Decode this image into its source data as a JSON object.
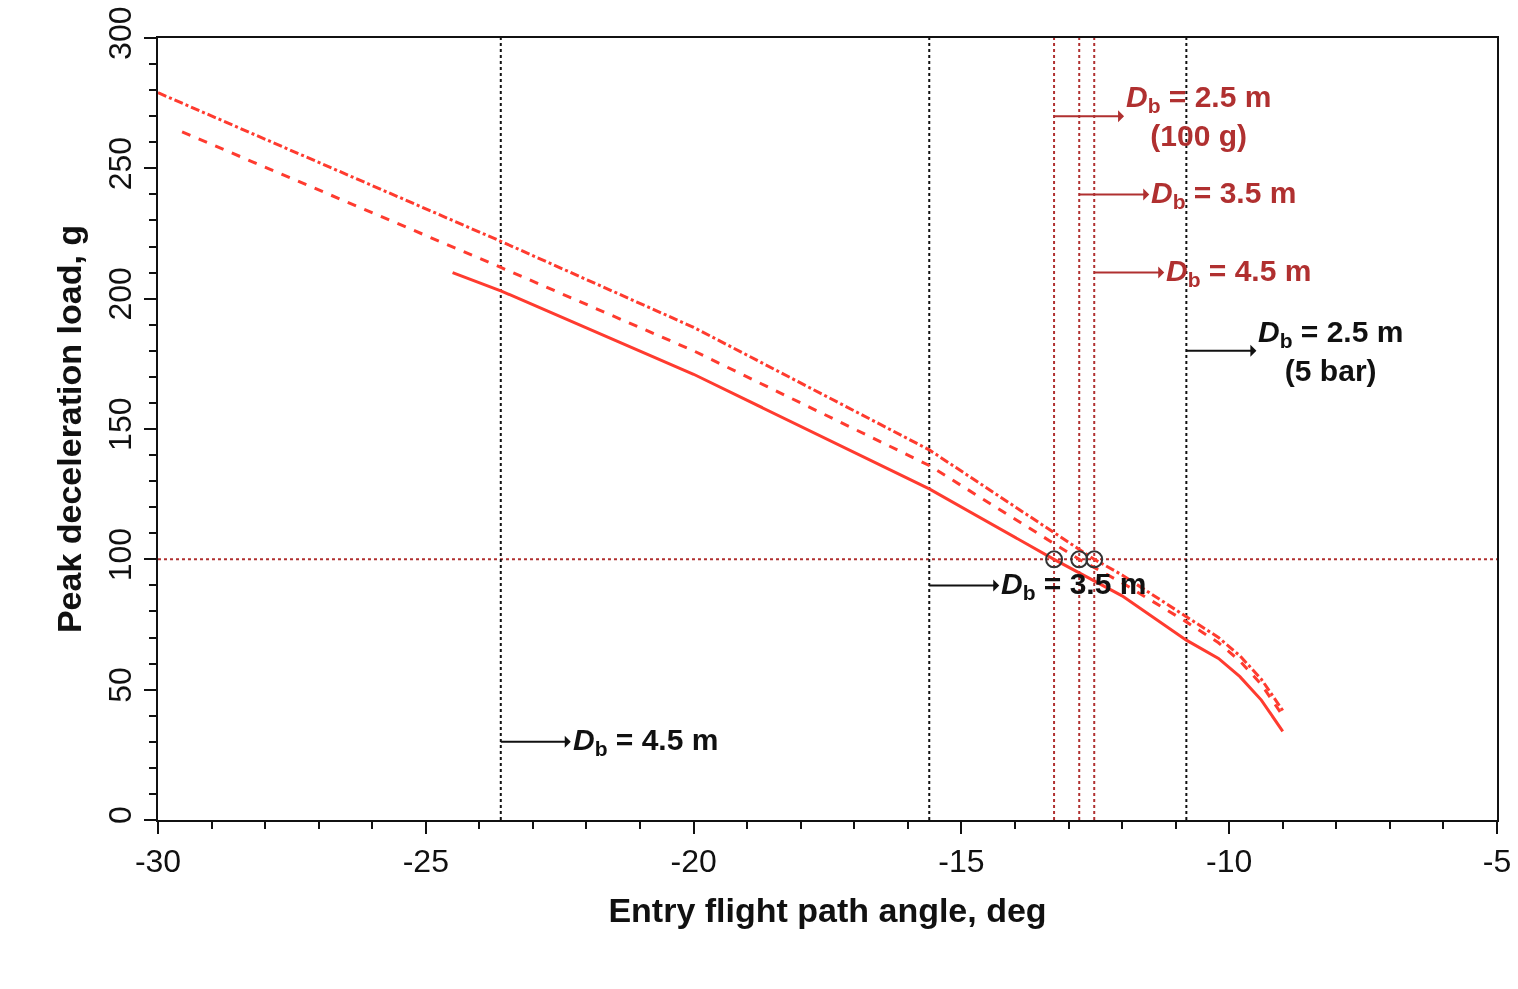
{
  "chart_data": {
    "type": "line",
    "xlabel": "Entry flight path angle, deg",
    "ylabel": "Peak deceleration load, g",
    "xlim": [
      -30,
      -5
    ],
    "xticks": [
      -30,
      -25,
      -20,
      -15,
      -10,
      -5
    ],
    "ylim": [
      0,
      300
    ],
    "yticks": [
      0,
      50,
      100,
      150,
      200,
      250,
      300
    ],
    "grid": false,
    "series": [
      {
        "color": "#ff3b2f",
        "line_style": "solid",
        "x": [
          -24.5,
          -23.6,
          -20,
          -15.6,
          -13.27,
          -12,
          -10.8,
          -10.2,
          -9.8,
          -9.4,
          -9.0
        ],
        "values": [
          210,
          203,
          171,
          127,
          100,
          86,
          69,
          62,
          55,
          46,
          34
        ]
      },
      {
        "color": "#ff3b2f",
        "line_style": "dashed",
        "x": [
          -29.55,
          -23.6,
          -20,
          -15.6,
          -12.8,
          -12,
          -10.8,
          -10.2,
          -9.8,
          -9.4,
          -9.0
        ],
        "values": [
          264,
          212,
          180,
          136,
          100,
          91,
          76,
          68,
          61,
          52,
          40
        ]
      },
      {
        "color": "#ff3b2f",
        "line_style": "dashdot",
        "x": [
          -30,
          -23.6,
          -20,
          -15.6,
          -12.52,
          -12,
          -10.8,
          -10.2,
          -9.8,
          -9.4,
          -9.0
        ],
        "values": [
          279,
          222,
          189,
          142,
          100,
          94,
          78,
          70,
          63,
          54,
          42
        ]
      },
      {
        "type": "scatter",
        "color": "#333333",
        "marker": "circle",
        "x": [
          -13.27,
          -12.8,
          -12.52
        ],
        "values": [
          100,
          100,
          100
        ]
      }
    ],
    "ref_lines": [
      {
        "axis": "y",
        "value": 100,
        "color": "#b03030",
        "line_style": "dotted"
      },
      {
        "axis": "x",
        "value": -13.27,
        "color": "#b03030",
        "line_style": "dotted"
      },
      {
        "axis": "x",
        "value": -12.8,
        "color": "#b03030",
        "line_style": "dotted"
      },
      {
        "axis": "x",
        "value": -12.52,
        "color": "#b03030",
        "line_style": "dotted"
      },
      {
        "axis": "x",
        "value": -23.6,
        "color": "#111111",
        "line_style": "dotted"
      },
      {
        "axis": "x",
        "value": -15.6,
        "color": "#111111",
        "line_style": "dotted"
      },
      {
        "axis": "x",
        "value": -10.8,
        "color": "#111111",
        "line_style": "dotted"
      }
    ],
    "annotations": [
      {
        "text": "D$_{b}$ = 2.5 m\n(100 g)",
        "x": -13.27,
        "y": 270
      },
      {
        "text": "D$_{b}$ = 3.5 m",
        "x": -12.8,
        "y": 240
      },
      {
        "text": "D$_{b}$ = 4.5 m",
        "x": -12.52,
        "y": 210
      },
      {
        "text": "D$_{b}$ = 2.5 m\n(5 bar)",
        "x": -10.8,
        "y": 180
      },
      {
        "text": "D$_{b}$ = 3.5 m",
        "x": -15.6,
        "y": 90
      },
      {
        "text": "D$_{b}$ = 4.5 m",
        "x": -23.6,
        "y": 30
      }
    ]
  }
}
